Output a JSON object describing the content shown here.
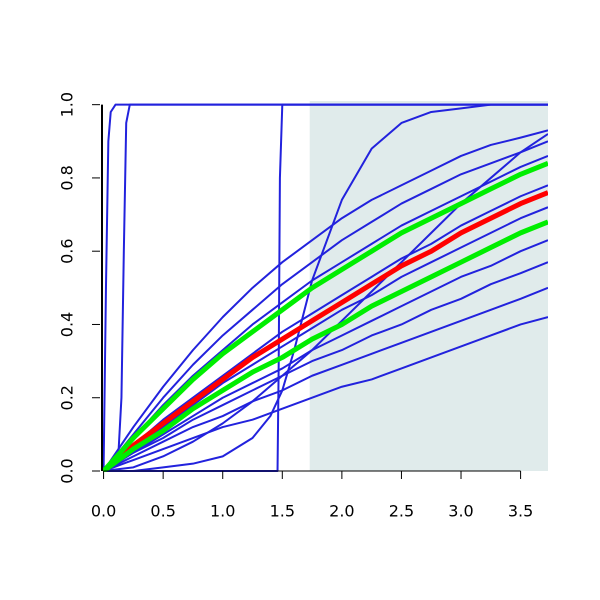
{
  "chart_data": {
    "type": "line",
    "xlim": [
      -0.03,
      3.73
    ],
    "ylim": [
      0,
      1.01
    ],
    "xticks": [
      {
        "value": 0,
        "label": "0.0"
      },
      0.5,
      {
        "value": 1,
        "label": "1.0"
      },
      1.5,
      {
        "value": 2,
        "label": "2.0"
      },
      2.5,
      {
        "value": 3,
        "label": "3.0"
      },
      3.5
    ],
    "yticks": [
      {
        "value": 0,
        "label": "0.0"
      },
      0.2,
      0.4,
      0.6,
      0.8,
      {
        "value": 1,
        "label": "1.0"
      }
    ],
    "shaded_region": {
      "xlim": [
        1.73,
        3.73
      ],
      "color": "#e0ebeb"
    },
    "series": [
      {
        "color": "#2222dd",
        "x": [
          0,
          0.25,
          0.5,
          0.75,
          1,
          1.25,
          1.5,
          1.75,
          2,
          2.25,
          2.5,
          2.75,
          3,
          3.25,
          3.5,
          3.73
        ],
        "values": [
          0,
          0.03,
          0.06,
          0.09,
          0.12,
          0.14,
          0.17,
          0.2,
          0.23,
          0.25,
          0.28,
          0.31,
          0.34,
          0.37,
          0.4,
          0.42
        ]
      },
      {
        "color": "#2222dd",
        "x": [
          0,
          0.25,
          0.5,
          0.75,
          1,
          1.25,
          1.5,
          1.75,
          2,
          2.25,
          2.5,
          2.75,
          3,
          3.25,
          3.5,
          3.73
        ],
        "values": [
          0,
          0.04,
          0.08,
          0.12,
          0.15,
          0.19,
          0.22,
          0.26,
          0.29,
          0.32,
          0.35,
          0.38,
          0.41,
          0.44,
          0.47,
          0.5
        ]
      },
      {
        "color": "#2222dd",
        "x": [
          0,
          0.25,
          0.5,
          0.75,
          1,
          1.25,
          1.5,
          1.75,
          2,
          2.25,
          2.5,
          2.75,
          3,
          3.25,
          3.5,
          3.73
        ],
        "values": [
          0,
          0.05,
          0.09,
          0.14,
          0.18,
          0.22,
          0.26,
          0.3,
          0.33,
          0.37,
          0.4,
          0.44,
          0.47,
          0.51,
          0.54,
          0.57
        ]
      },
      {
        "color": "#2222dd",
        "x": [
          0,
          0.25,
          0.5,
          0.75,
          1,
          1.25,
          1.5,
          1.75,
          2,
          2.25,
          2.5,
          2.75,
          3,
          3.25,
          3.5,
          3.73
        ],
        "values": [
          0,
          0.05,
          0.1,
          0.15,
          0.2,
          0.24,
          0.28,
          0.33,
          0.37,
          0.41,
          0.45,
          0.49,
          0.53,
          0.56,
          0.6,
          0.63
        ]
      },
      {
        "color": "#2222dd",
        "x": [
          0,
          0.25,
          0.5,
          0.75,
          1,
          1.25,
          1.5,
          1.75,
          2,
          2.25,
          2.5,
          2.75,
          3,
          3.25,
          3.5,
          3.73
        ],
        "values": [
          0,
          0.06,
          0.12,
          0.18,
          0.24,
          0.29,
          0.34,
          0.39,
          0.44,
          0.48,
          0.53,
          0.57,
          0.61,
          0.65,
          0.69,
          0.72
        ]
      },
      {
        "color": "#2222dd",
        "x": [
          0,
          0.25,
          0.5,
          0.75,
          1,
          1.25,
          1.5,
          1.75,
          2,
          2.25,
          2.5,
          2.75,
          3,
          3.25,
          3.5,
          3.73
        ],
        "values": [
          0,
          0.07,
          0.14,
          0.2,
          0.26,
          0.32,
          0.38,
          0.43,
          0.48,
          0.53,
          0.58,
          0.62,
          0.67,
          0.71,
          0.75,
          0.78
        ]
      },
      {
        "color": "#2222dd",
        "x": [
          0,
          0.25,
          0.5,
          0.75,
          1,
          1.25,
          1.5,
          1.75,
          2,
          2.25,
          2.5,
          2.75,
          3,
          3.25,
          3.5,
          3.73
        ],
        "values": [
          0,
          0.12,
          0.23,
          0.33,
          0.42,
          0.5,
          0.57,
          0.63,
          0.69,
          0.74,
          0.78,
          0.82,
          0.86,
          0.89,
          0.91,
          0.93
        ]
      },
      {
        "color": "#2222dd",
        "x": [
          0,
          0.25,
          0.5,
          0.75,
          1,
          1.25,
          1.5,
          1.75,
          2,
          2.25,
          2.5,
          2.75,
          3,
          3.25,
          3.5,
          3.73
        ],
        "values": [
          0,
          0.1,
          0.2,
          0.29,
          0.37,
          0.44,
          0.51,
          0.57,
          0.63,
          0.68,
          0.73,
          0.77,
          0.81,
          0.84,
          0.87,
          0.9
        ]
      },
      {
        "color": "#2222dd",
        "x": [
          0,
          0.25,
          0.5,
          0.75,
          1,
          1.25,
          1.5,
          1.75,
          2,
          2.25,
          2.5,
          2.75,
          3,
          3.25,
          3.5,
          3.73
        ],
        "values": [
          0,
          0.09,
          0.18,
          0.26,
          0.33,
          0.4,
          0.46,
          0.52,
          0.57,
          0.62,
          0.67,
          0.71,
          0.75,
          0.79,
          0.83,
          0.86
        ]
      },
      {
        "color": "#2222dd",
        "x": [
          0,
          0.25,
          0.5,
          0.75,
          1,
          1.25,
          1.5,
          1.75,
          2,
          2.25,
          2.5,
          2.75,
          3,
          3.25,
          3.5,
          3.73
        ],
        "values": [
          0,
          0.01,
          0.04,
          0.08,
          0.13,
          0.19,
          0.26,
          0.33,
          0.41,
          0.49,
          0.57,
          0.65,
          0.73,
          0.8,
          0.87,
          0.92
        ]
      },
      {
        "color": "#2222dd",
        "x": [
          0,
          0.25,
          0.5,
          0.75,
          1,
          1.25,
          1.4,
          1.5,
          1.6,
          1.75,
          2,
          2.25,
          2.5,
          2.75,
          3,
          3.25,
          3.5,
          3.73
        ],
        "values": [
          0,
          0,
          0.01,
          0.02,
          0.04,
          0.09,
          0.15,
          0.22,
          0.33,
          0.52,
          0.74,
          0.88,
          0.95,
          0.98,
          0.99,
          1,
          1,
          1
        ]
      },
      {
        "color": "#2222dd",
        "x": [
          0,
          0.02,
          0.04,
          0.06,
          0.1,
          3.73
        ],
        "values": [
          0,
          0.5,
          0.9,
          0.98,
          1,
          1
        ]
      },
      {
        "color": "#2222dd",
        "x": [
          0,
          0.12,
          0.15,
          0.17,
          0.19,
          0.22,
          3.73
        ],
        "values": [
          0,
          0.02,
          0.2,
          0.6,
          0.95,
          1,
          1
        ]
      },
      {
        "color": "#2222dd",
        "x": [
          0,
          1.46,
          1.47,
          1.48,
          1.5,
          3.73
        ],
        "values": [
          0,
          0,
          0.3,
          0.8,
          1,
          1
        ]
      },
      {
        "color": "#ff0000",
        "x": [
          0,
          0.25,
          0.5,
          0.75,
          1,
          1.25,
          1.5,
          1.75,
          2,
          2.25,
          2.5,
          2.75,
          3,
          3.25,
          3.5,
          3.73
        ],
        "values": [
          0,
          0.07,
          0.13,
          0.19,
          0.25,
          0.31,
          0.36,
          0.41,
          0.46,
          0.51,
          0.56,
          0.6,
          0.65,
          0.69,
          0.73,
          0.76
        ],
        "width": 5
      },
      {
        "color": "#00ee00",
        "x": [
          0,
          0.25,
          0.5,
          0.75,
          1,
          1.25,
          1.5,
          1.75,
          2,
          2.25,
          2.5,
          2.75,
          3,
          3.25,
          3.5,
          3.73
        ],
        "values": [
          0,
          0.09,
          0.17,
          0.25,
          0.32,
          0.38,
          0.44,
          0.5,
          0.55,
          0.6,
          0.65,
          0.69,
          0.73,
          0.77,
          0.81,
          0.84
        ],
        "width": 5
      },
      {
        "color": "#00ee00",
        "x": [
          0,
          0.25,
          0.5,
          0.75,
          1,
          1.25,
          1.5,
          1.75,
          2,
          2.25,
          2.5,
          2.75,
          3,
          3.25,
          3.5,
          3.73
        ],
        "values": [
          0,
          0.06,
          0.11,
          0.17,
          0.22,
          0.27,
          0.31,
          0.36,
          0.4,
          0.45,
          0.49,
          0.53,
          0.57,
          0.61,
          0.65,
          0.68
        ],
        "width": 5
      }
    ]
  }
}
